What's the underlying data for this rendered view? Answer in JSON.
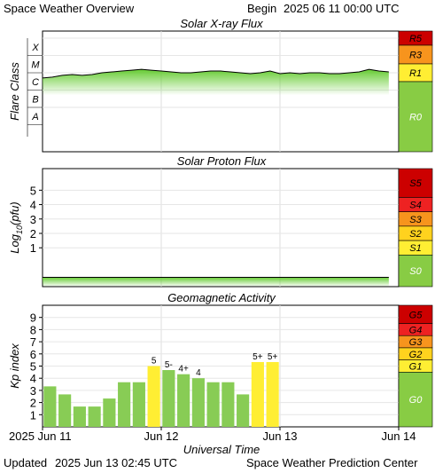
{
  "header": {
    "title": "Space Weather Overview",
    "begin_label": "Begin",
    "begin_time": "2025 06 11 00:00 UTC"
  },
  "footer": {
    "updated_label": "Updated",
    "updated_time": "2025 Jun 13 02:45 UTC",
    "source": "Space Weather Prediction Center"
  },
  "colors": {
    "scale_dark_red": "#cc0000",
    "scale_red": "#ee2222",
    "scale_orange": "#f7941d",
    "scale_yellow": "#ffd21e",
    "scale_light_yellow": "#ffee33",
    "scale_green": "#88cc44",
    "bar_green": "#88cc55",
    "bar_yellow": "#ffee33",
    "flux_line": "#000000",
    "flux_fill": "#66cc33"
  },
  "chart_data": [
    {
      "type": "area",
      "title": "Solar X-ray Flux",
      "ylabel": "Flare Class",
      "y_categories": [
        "A",
        "B",
        "C",
        "M",
        "X"
      ],
      "xlim": [
        "2025-06-11T00:00",
        "2025-06-14T00:00"
      ],
      "x_ticks": [
        "2025 Jun 11",
        "Jun 12",
        "Jun 13",
        "Jun 14"
      ],
      "grid": true,
      "series": [
        {
          "x_hours": [
            0,
            2,
            4,
            6,
            8,
            10,
            12,
            14,
            16,
            18,
            20,
            22,
            24,
            26,
            28,
            30,
            32,
            34,
            36,
            38,
            40,
            42,
            44,
            46,
            48,
            50,
            52,
            54,
            56,
            58,
            60,
            62,
            64,
            66,
            68,
            70
          ],
          "flare_level": [
            2.7,
            2.75,
            2.85,
            2.9,
            2.85,
            2.9,
            3.0,
            3.05,
            3.1,
            3.15,
            3.2,
            3.15,
            3.1,
            3.05,
            3.0,
            3.0,
            3.05,
            3.1,
            3.1,
            3.05,
            3.0,
            2.95,
            3.0,
            3.1,
            2.95,
            3.0,
            2.95,
            3.0,
            3.0,
            2.95,
            2.95,
            3.0,
            3.05,
            3.2,
            3.1,
            3.05
          ]
        }
      ],
      "scale": [
        "R5",
        "R3",
        "R1",
        "R0"
      ]
    },
    {
      "type": "area",
      "title": "Solar Proton Flux",
      "ylabel_main": "Log",
      "ylabel_sub": "10",
      "ylabel_unit": "(pfu)",
      "y_ticks": [
        "1",
        "2",
        "3",
        "4",
        "5"
      ],
      "ylim": [
        -1.7,
        6.5
      ],
      "xlim": [
        "2025-06-11T00:00",
        "2025-06-14T00:00"
      ],
      "grid": true,
      "series": [
        {
          "x_hours": [
            0,
            10,
            20,
            30,
            40,
            50,
            60,
            70
          ],
          "log_flux": [
            -1.05,
            -1.05,
            -1.05,
            -1.05,
            -1.05,
            -1.05,
            -1.05,
            -1.05
          ]
        }
      ],
      "scale": [
        "S5",
        "S4",
        "S3",
        "S2",
        "S1",
        "S0"
      ]
    },
    {
      "type": "bar",
      "title": "Geomagnetic Activity",
      "ylabel": "Kp index",
      "y_ticks": [
        "1",
        "2",
        "3",
        "4",
        "5",
        "6",
        "7",
        "8",
        "9"
      ],
      "ylim": [
        0,
        10
      ],
      "xlabel": "Universal Time",
      "x_ticks": [
        "2025 Jun 11",
        "Jun 12",
        "Jun 13",
        "Jun 14"
      ],
      "grid": true,
      "bars": [
        {
          "period": "Jun 11 00-03",
          "kp": 3.33,
          "label": ""
        },
        {
          "period": "Jun 11 03-06",
          "kp": 2.67,
          "label": ""
        },
        {
          "period": "Jun 11 06-09",
          "kp": 1.67,
          "label": ""
        },
        {
          "period": "Jun 11 09-12",
          "kp": 1.67,
          "label": ""
        },
        {
          "period": "Jun 11 12-15",
          "kp": 2.33,
          "label": ""
        },
        {
          "period": "Jun 11 15-18",
          "kp": 3.67,
          "label": ""
        },
        {
          "period": "Jun 11 18-21",
          "kp": 3.67,
          "label": ""
        },
        {
          "period": "Jun 11 21-24",
          "kp": 5.0,
          "label": "5"
        },
        {
          "period": "Jun 12 00-03",
          "kp": 4.67,
          "label": "5-"
        },
        {
          "period": "Jun 12 03-06",
          "kp": 4.33,
          "label": "4+"
        },
        {
          "period": "Jun 12 06-09",
          "kp": 4.0,
          "label": "4"
        },
        {
          "period": "Jun 12 09-12",
          "kp": 3.67,
          "label": ""
        },
        {
          "period": "Jun 12 12-15",
          "kp": 3.67,
          "label": ""
        },
        {
          "period": "Jun 12 15-18",
          "kp": 2.67,
          "label": ""
        },
        {
          "period": "Jun 12 18-21",
          "kp": 5.33,
          "label": "5+"
        },
        {
          "period": "Jun 12 21-24",
          "kp": 5.33,
          "label": "5+"
        }
      ],
      "scale": [
        "G5",
        "G4",
        "G3",
        "G2",
        "G1",
        "G0"
      ]
    }
  ]
}
